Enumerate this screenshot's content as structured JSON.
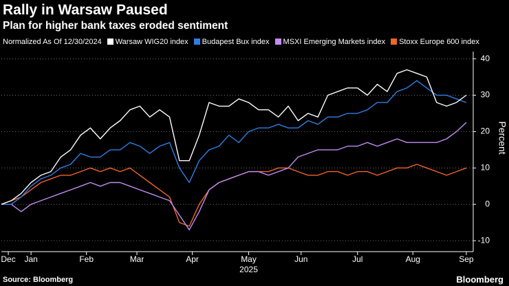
{
  "chart_data": {
    "type": "line",
    "title": "Rally in Warsaw Paused",
    "subtitle": "Plan for higher bank taxes eroded sentiment",
    "legend_note": "Normalized As Of 12/30/2024",
    "y_label": "Percent",
    "x_year_label": "2025",
    "x": [
      0,
      1,
      2,
      3,
      4,
      5,
      6,
      7,
      8,
      9,
      10,
      11,
      12,
      13,
      14,
      15,
      16,
      17,
      18,
      19,
      20,
      21,
      22,
      23,
      24,
      25,
      26,
      27,
      28,
      29,
      30,
      31,
      32,
      33,
      34,
      35,
      36,
      37,
      38,
      39,
      40,
      41,
      42,
      43,
      44,
      45,
      46,
      47
    ],
    "xlim": [
      0,
      47.7
    ],
    "xticks": [
      {
        "value": 0.7,
        "label": "Dec"
      },
      {
        "value": 3,
        "label": "Jan"
      },
      {
        "value": 8.6,
        "label": "Feb"
      },
      {
        "value": 13.7,
        "label": "Mar"
      },
      {
        "value": 19.3,
        "label": "Apr"
      },
      {
        "value": 25,
        "label": "May"
      },
      {
        "value": 30.3,
        "label": "Jun"
      },
      {
        "value": 36,
        "label": "Jul"
      },
      {
        "value": 41.6,
        "label": "Aug"
      },
      {
        "value": 47,
        "label": "Sep"
      }
    ],
    "ylim": [
      -13,
      42
    ],
    "yticks": [
      -10,
      0,
      10,
      20,
      30,
      40
    ],
    "grid": true,
    "series": [
      {
        "name": "Warsaw WIG20 index",
        "color": "#ffffff",
        "values": [
          0,
          1,
          3,
          6,
          8,
          9,
          13,
          15,
          19,
          21,
          18,
          21,
          23,
          26,
          27,
          24,
          26,
          24,
          12,
          12,
          19,
          28,
          27,
          27,
          29,
          28,
          26,
          26,
          24,
          27,
          23,
          25,
          24,
          30,
          31,
          32,
          32,
          30,
          33,
          31,
          36,
          37,
          36,
          35,
          28,
          27,
          28,
          30
        ]
      },
      {
        "name": "Budapest Bux index",
        "color": "#2f7fe3",
        "values": [
          0,
          0,
          2,
          5,
          7,
          8,
          10,
          11,
          14,
          13,
          13,
          15,
          15,
          17,
          16,
          14,
          16,
          17,
          10,
          6,
          12,
          15,
          16,
          19,
          17,
          20,
          21,
          21,
          22,
          21,
          21,
          23,
          22,
          24,
          24,
          25,
          25,
          26,
          28,
          28,
          31,
          32,
          34,
          32,
          30,
          30,
          29,
          28
        ]
      },
      {
        "name": "MSXI Emerging Markets index",
        "color": "#c28ef2",
        "values": [
          0,
          0,
          -2,
          0,
          1,
          2,
          3,
          4,
          5,
          6,
          5,
          6,
          6,
          5,
          4,
          3,
          2,
          1,
          -3,
          -7,
          -2,
          4,
          6,
          7,
          8,
          9,
          9,
          8,
          9,
          10,
          13,
          14,
          15,
          15,
          15,
          16,
          16,
          17,
          16,
          17,
          18,
          17,
          17,
          17,
          17,
          18,
          20,
          22.5
        ]
      },
      {
        "name": "Stoxx Europe 600 index",
        "color": "#f2652b",
        "values": [
          0,
          1,
          2,
          4,
          6,
          7,
          8,
          8,
          9,
          10,
          9,
          10,
          9,
          10,
          8,
          6,
          4,
          2,
          -5,
          -6,
          0,
          4,
          6,
          7,
          8,
          9,
          9,
          9,
          10,
          10,
          9,
          8,
          8,
          9,
          9,
          8,
          9,
          9,
          8,
          9,
          10,
          10,
          11,
          10,
          9,
          8,
          9,
          10
        ]
      }
    ]
  },
  "footer": {
    "source": "Source: Bloomberg",
    "brand": "Bloomberg"
  }
}
